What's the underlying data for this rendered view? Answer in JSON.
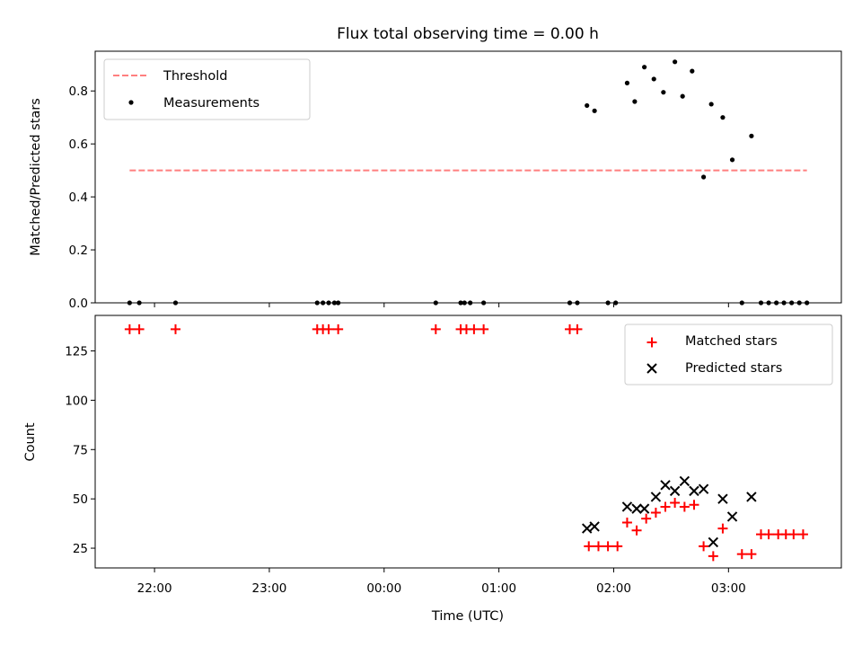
{
  "figure": {
    "title": "Flux total observing time = 0.00 h"
  },
  "chart_data": [
    {
      "type": "scatter",
      "panel": "top",
      "xlabel": "",
      "ylabel": "Matched/Predicted stars",
      "xaxis": "time (hours, continuing past midnight as 24, 25, ...)",
      "xlim": [
        21.483,
        27.983
      ],
      "ylim": [
        0,
        0.95
      ],
      "yticks": [
        0.0,
        0.2,
        0.4,
        0.6,
        0.8
      ],
      "ytick_labels": [
        "0.0",
        "0.2",
        "0.4",
        "0.6",
        "0.8"
      ],
      "legend_position": "upper-left",
      "grid": false,
      "series": [
        {
          "name": "Threshold",
          "kind": "dashed-line",
          "color": "#ff7f7f",
          "x": [
            21.783,
            27.683
          ],
          "y": [
            0.5,
            0.5
          ]
        },
        {
          "name": "Measurements",
          "kind": "dots",
          "color": "#000000",
          "x": [
            21.783,
            21.867,
            22.183,
            23.417,
            23.467,
            23.517,
            23.567,
            23.6,
            24.45,
            24.667,
            24.7,
            24.75,
            24.867,
            25.617,
            25.683,
            25.767,
            25.833,
            25.95,
            26.017,
            26.117,
            26.183,
            26.267,
            26.35,
            26.433,
            26.533,
            26.6,
            26.683,
            26.783,
            26.85,
            26.95,
            27.033,
            27.117,
            27.2,
            27.283,
            27.35,
            27.417,
            27.483,
            27.55,
            27.617,
            27.683
          ],
          "y": [
            0,
            0,
            0,
            0,
            0,
            0,
            0,
            0,
            0,
            0,
            0,
            0,
            0,
            0,
            0,
            0.745,
            0.725,
            0,
            0,
            0.83,
            0.76,
            0.89,
            0.845,
            0.795,
            0.91,
            0.78,
            0.875,
            0.475,
            0.75,
            0.7,
            0.54,
            0,
            0.63,
            0,
            0,
            0,
            0,
            0,
            0,
            0
          ]
        }
      ]
    },
    {
      "type": "scatter",
      "panel": "bottom",
      "xlabel": "Time (UTC)",
      "ylabel": "Count",
      "xlim": [
        21.483,
        27.983
      ],
      "ylim": [
        15,
        143
      ],
      "yticks": [
        25,
        50,
        75,
        100,
        125
      ],
      "ytick_labels": [
        "25",
        "50",
        "75",
        "100",
        "125"
      ],
      "xticks": [
        22,
        23,
        24,
        25,
        26,
        27
      ],
      "xtick_labels": [
        "22:00",
        "23:00",
        "00:00",
        "01:00",
        "02:00",
        "03:00"
      ],
      "legend_position": "upper-right",
      "grid": false,
      "series": [
        {
          "name": "Matched stars",
          "marker": "+",
          "color": "#ff0000",
          "x": [
            21.783,
            21.867,
            22.183,
            23.417,
            23.467,
            23.517,
            23.6,
            24.45,
            24.667,
            24.717,
            24.783,
            24.867,
            25.617,
            25.683,
            25.783,
            25.867,
            25.95,
            26.033,
            26.117,
            26.2,
            26.283,
            26.367,
            26.45,
            26.533,
            26.617,
            26.7,
            26.783,
            26.867,
            26.95,
            27.117,
            27.2,
            27.283,
            27.35,
            27.433,
            27.5,
            27.567,
            27.65
          ],
          "y": [
            136,
            136,
            136,
            136,
            136,
            136,
            136,
            136,
            136,
            136,
            136,
            136,
            136,
            136,
            26,
            26,
            26,
            26,
            38,
            34,
            40,
            43,
            46,
            48,
            46,
            47,
            26,
            21,
            35,
            22,
            22,
            32,
            32,
            32,
            32,
            32,
            32
          ]
        },
        {
          "name": "Predicted stars",
          "marker": "x",
          "color": "#000000",
          "x": [
            25.767,
            25.833,
            26.117,
            26.2,
            26.267,
            26.367,
            26.45,
            26.533,
            26.617,
            26.7,
            26.783,
            26.867,
            26.95,
            27.033,
            27.2
          ],
          "y": [
            35,
            36,
            46,
            45,
            45,
            51,
            57,
            54,
            59,
            54,
            55,
            28,
            50,
            41,
            51
          ]
        }
      ]
    }
  ]
}
